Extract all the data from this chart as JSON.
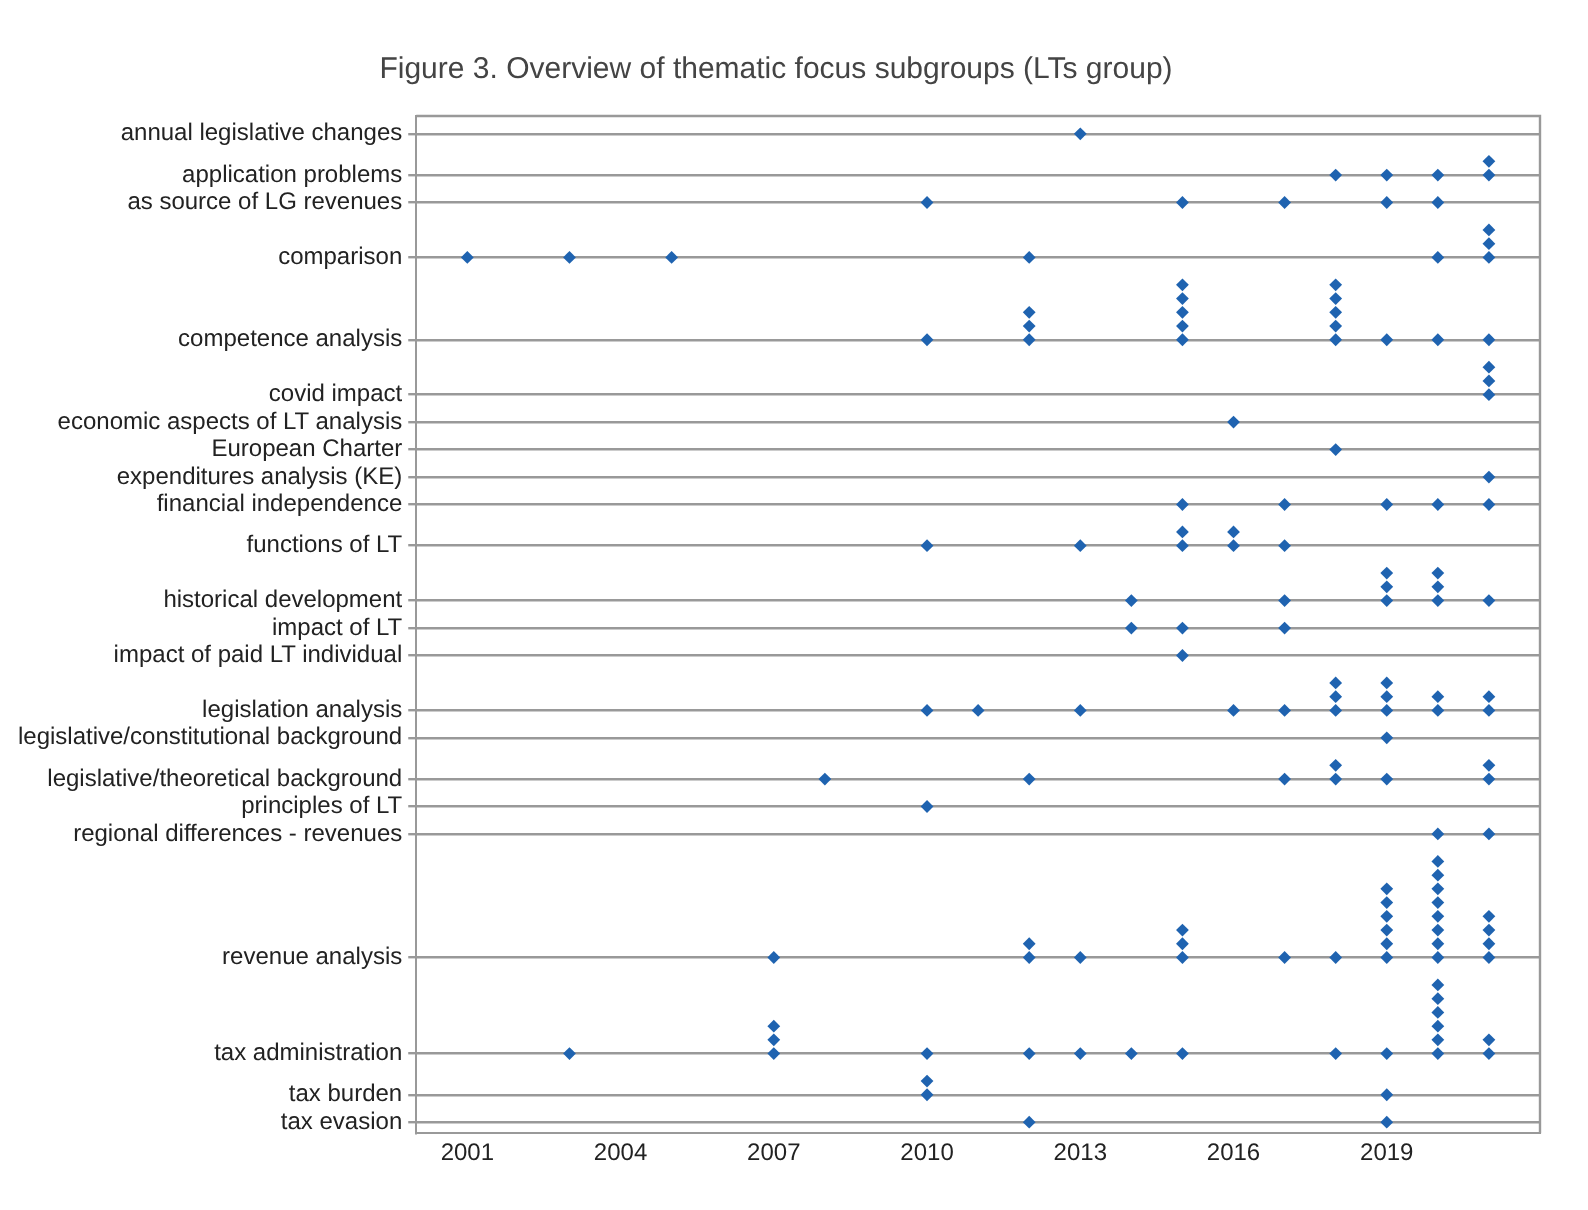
{
  "chart_data": {
    "type": "scatter",
    "title": "Figure 3. Overview of thematic focus subgroups (LTs group)",
    "orientation": "horizontal",
    "marker": "diamond",
    "color": "#1f63b0",
    "grid": "y",
    "legend": false,
    "xlim": [
      2000,
      2022
    ],
    "xticks": [
      2001,
      2004,
      2007,
      2010,
      2013,
      2016,
      2019
    ],
    "categories": [
      null,
      "annual legislative changes",
      null,
      null,
      "application problems",
      null,
      "as source of LG revenues",
      null,
      null,
      null,
      "comparison",
      null,
      null,
      null,
      null,
      null,
      "competence analysis",
      null,
      null,
      null,
      "covid impact",
      null,
      "economic aspects of LT analysis",
      null,
      "European Charter",
      null,
      "expenditures analysis (KE)",
      null,
      "financial independence",
      null,
      null,
      "functions of LT",
      null,
      null,
      null,
      "historical development",
      null,
      "impact of LT",
      null,
      "impact of paid LT individual",
      null,
      null,
      null,
      "legislation analysis",
      null,
      "legislative/constitutional background",
      null,
      null,
      "legislative/theoretical background",
      null,
      "principles of LT",
      null,
      "regional differences - revenues",
      null,
      null,
      null,
      null,
      null,
      null,
      null,
      null,
      "revenue analysis",
      null,
      null,
      null,
      null,
      null,
      null,
      "tax administration",
      null,
      null,
      "tax burden",
      null,
      "tax evasion"
    ],
    "series": [
      {
        "values": [
          null,
          2013,
          null,
          2021,
          2018,
          null,
          2010,
          null,
          2021,
          2021,
          2001,
          null,
          2015,
          2015,
          2012,
          2012,
          2010,
          null,
          2021,
          2021,
          2021,
          null,
          2016,
          null,
          2018,
          null,
          2021,
          null,
          2015,
          null,
          2015,
          2010,
          null,
          2019,
          2019,
          2014,
          null,
          2014,
          null,
          2015,
          null,
          2018,
          2018,
          2010,
          null,
          2019,
          null,
          2018,
          2008,
          null,
          2010,
          null,
          2020,
          null,
          2020,
          2020,
          2019,
          2019,
          2019,
          2015,
          2012,
          2007,
          null,
          2020,
          2020,
          2020,
          2007,
          2007,
          2003,
          null,
          2010,
          2010,
          null,
          2012
        ]
      },
      {
        "values": [
          null,
          null,
          null,
          null,
          2019,
          null,
          2015,
          null,
          null,
          null,
          2003,
          null,
          2018,
          2018,
          2015,
          2015,
          2012,
          null,
          null,
          null,
          null,
          null,
          null,
          null,
          null,
          null,
          null,
          null,
          2017,
          null,
          2016,
          2013,
          null,
          2020,
          2020,
          2017,
          null,
          2015,
          null,
          null,
          null,
          2019,
          2019,
          2011,
          null,
          null,
          null,
          2021,
          2012,
          null,
          null,
          null,
          2021,
          null,
          null,
          null,
          2020,
          2020,
          2020,
          2019,
          2015,
          2012,
          null,
          null,
          null,
          null,
          2020,
          2020,
          2007,
          null,
          null,
          2019,
          null,
          2019
        ]
      },
      {
        "values": [
          null,
          null,
          null,
          null,
          2020,
          null,
          2017,
          null,
          null,
          null,
          2005,
          null,
          null,
          null,
          2018,
          2018,
          2015,
          null,
          null,
          null,
          null,
          null,
          null,
          null,
          null,
          null,
          null,
          null,
          2019,
          null,
          null,
          2015,
          null,
          null,
          null,
          2019,
          null,
          2017,
          null,
          null,
          null,
          null,
          2020,
          2013,
          null,
          null,
          null,
          null,
          2017,
          null,
          null,
          null,
          null,
          null,
          null,
          null,
          null,
          null,
          2021,
          2020,
          2019,
          2013,
          null,
          null,
          null,
          null,
          null,
          2021,
          2010,
          null,
          null,
          null,
          null,
          null
        ]
      },
      {
        "values": [
          null,
          null,
          null,
          null,
          2021,
          null,
          2019,
          null,
          null,
          null,
          2012,
          null,
          null,
          null,
          null,
          null,
          2018,
          null,
          null,
          null,
          null,
          null,
          null,
          null,
          null,
          null,
          null,
          null,
          2020,
          null,
          null,
          2016,
          null,
          null,
          null,
          2020,
          null,
          null,
          null,
          null,
          null,
          null,
          2021,
          2016,
          null,
          null,
          null,
          null,
          2018,
          null,
          null,
          null,
          null,
          null,
          null,
          null,
          null,
          null,
          null,
          2021,
          2020,
          2015,
          null,
          null,
          null,
          null,
          null,
          null,
          2012,
          null,
          null,
          null,
          null,
          null
        ]
      },
      {
        "values": [
          null,
          null,
          null,
          null,
          null,
          null,
          2020,
          null,
          null,
          null,
          2020,
          null,
          null,
          null,
          null,
          null,
          2019,
          null,
          null,
          null,
          null,
          null,
          null,
          null,
          null,
          null,
          null,
          null,
          2021,
          null,
          null,
          2017,
          null,
          null,
          null,
          2021,
          null,
          null,
          null,
          null,
          null,
          null,
          null,
          2017,
          null,
          null,
          null,
          null,
          2019,
          null,
          null,
          null,
          null,
          null,
          null,
          null,
          null,
          null,
          null,
          null,
          2021,
          2017,
          null,
          null,
          null,
          null,
          null,
          null,
          2013,
          null,
          null,
          null,
          null,
          null
        ]
      },
      {
        "values": [
          null,
          null,
          null,
          null,
          null,
          null,
          null,
          null,
          null,
          null,
          2021,
          null,
          null,
          null,
          null,
          null,
          2020,
          null,
          null,
          null,
          null,
          null,
          null,
          null,
          null,
          null,
          null,
          null,
          null,
          null,
          null,
          null,
          null,
          null,
          null,
          null,
          null,
          null,
          null,
          null,
          null,
          null,
          null,
          2018,
          null,
          null,
          null,
          null,
          2021,
          null,
          null,
          null,
          null,
          null,
          null,
          null,
          null,
          null,
          null,
          null,
          null,
          2018,
          null,
          null,
          null,
          null,
          null,
          null,
          2014,
          null,
          null,
          null,
          null,
          null
        ]
      },
      {
        "values": [
          null,
          null,
          null,
          null,
          null,
          null,
          null,
          null,
          null,
          null,
          null,
          null,
          null,
          null,
          null,
          null,
          2021,
          null,
          null,
          null,
          null,
          null,
          null,
          null,
          null,
          null,
          null,
          null,
          null,
          null,
          null,
          null,
          null,
          null,
          null,
          null,
          null,
          null,
          null,
          null,
          null,
          null,
          null,
          2019,
          null,
          null,
          null,
          null,
          null,
          null,
          null,
          null,
          null,
          null,
          null,
          null,
          null,
          null,
          null,
          null,
          null,
          2019,
          null,
          null,
          null,
          null,
          null,
          null,
          2015,
          null,
          null,
          null,
          null,
          null
        ]
      },
      {
        "values": [
          null,
          null,
          null,
          null,
          null,
          null,
          null,
          null,
          null,
          null,
          null,
          null,
          null,
          null,
          null,
          null,
          null,
          null,
          null,
          null,
          null,
          null,
          null,
          null,
          null,
          null,
          null,
          null,
          null,
          null,
          null,
          null,
          null,
          null,
          null,
          null,
          null,
          null,
          null,
          null,
          null,
          null,
          null,
          2020,
          null,
          null,
          null,
          null,
          null,
          null,
          null,
          null,
          null,
          null,
          null,
          null,
          null,
          null,
          null,
          null,
          null,
          2020,
          null,
          null,
          null,
          null,
          null,
          null,
          2018,
          null,
          null,
          null,
          null,
          null
        ]
      },
      {
        "values": [
          null,
          null,
          null,
          null,
          null,
          null,
          null,
          null,
          null,
          null,
          null,
          null,
          null,
          null,
          null,
          null,
          null,
          null,
          null,
          null,
          null,
          null,
          null,
          null,
          null,
          null,
          null,
          null,
          null,
          null,
          null,
          null,
          null,
          null,
          null,
          null,
          null,
          null,
          null,
          null,
          null,
          null,
          null,
          2021,
          null,
          null,
          null,
          null,
          null,
          null,
          null,
          null,
          null,
          null,
          null,
          null,
          null,
          null,
          null,
          null,
          null,
          2021,
          null,
          null,
          null,
          null,
          null,
          null,
          2019,
          null,
          null,
          null,
          null,
          null
        ]
      },
      {
        "values": [
          null,
          null,
          null,
          null,
          null,
          null,
          null,
          null,
          null,
          null,
          null,
          null,
          null,
          null,
          null,
          null,
          null,
          null,
          null,
          null,
          null,
          null,
          null,
          null,
          null,
          null,
          null,
          null,
          null,
          null,
          null,
          null,
          null,
          null,
          null,
          null,
          null,
          null,
          null,
          null,
          null,
          null,
          null,
          null,
          null,
          null,
          null,
          null,
          null,
          null,
          null,
          null,
          null,
          null,
          null,
          null,
          null,
          null,
          null,
          null,
          null,
          null,
          null,
          null,
          null,
          null,
          null,
          null,
          2020,
          null,
          null,
          null,
          null,
          null
        ]
      },
      {
        "values": [
          null,
          null,
          null,
          null,
          null,
          null,
          null,
          null,
          null,
          null,
          null,
          null,
          null,
          null,
          null,
          null,
          null,
          null,
          null,
          null,
          null,
          null,
          null,
          null,
          null,
          null,
          null,
          null,
          null,
          null,
          null,
          null,
          null,
          null,
          null,
          null,
          null,
          null,
          null,
          null,
          null,
          null,
          null,
          null,
          null,
          null,
          null,
          null,
          null,
          null,
          null,
          null,
          null,
          null,
          null,
          null,
          null,
          null,
          null,
          null,
          null,
          null,
          null,
          null,
          null,
          null,
          null,
          null,
          2021,
          null,
          null,
          null,
          null,
          null
        ]
      }
    ]
  }
}
